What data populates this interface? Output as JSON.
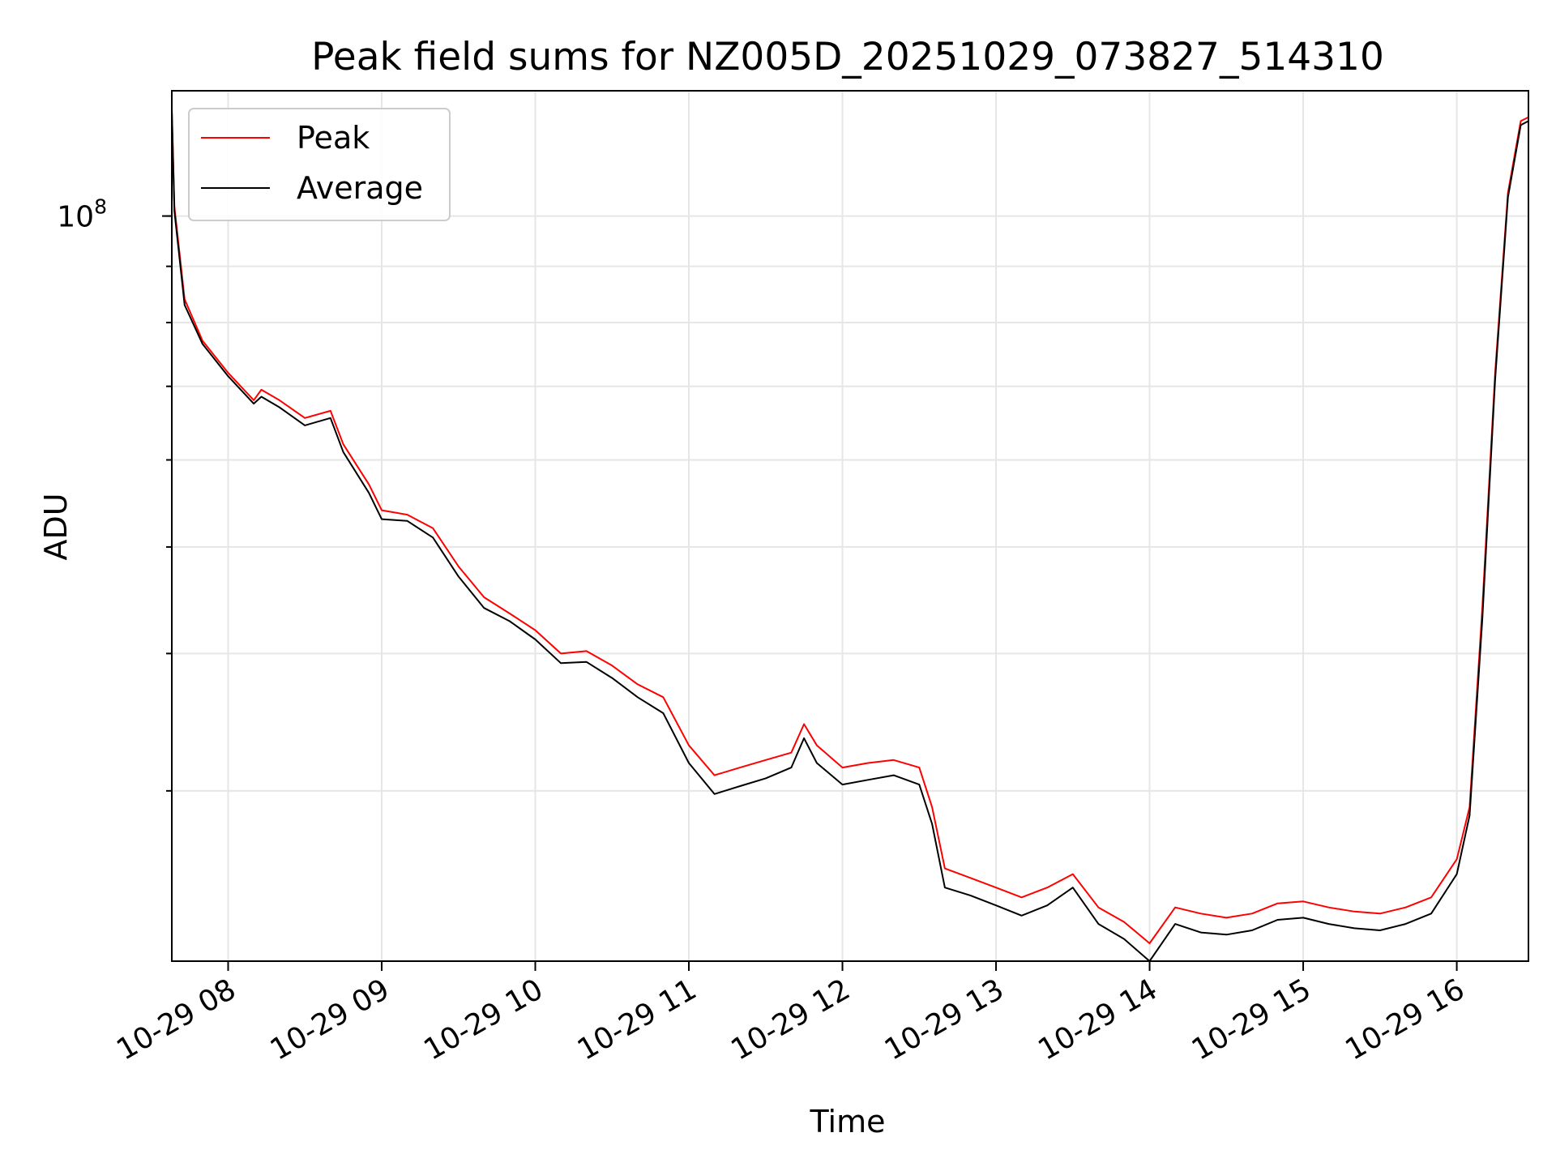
{
  "chart_data": {
    "type": "line",
    "title": "Peak field sums for NZ005D_20251029_073827_514310",
    "xlabel": "Time",
    "ylabel": "ADU",
    "yscale": "log",
    "grid": true,
    "legend_position": "top-left",
    "xlim": [
      "2025-10-29 07:38",
      "2025-10-29 16:28"
    ],
    "ylim": [
      21000000.0,
      130000000.0
    ],
    "x_ticks": [
      "10-29 08",
      "10-29 09",
      "10-29 10",
      "10-29 11",
      "10-29 12",
      "10-29 13",
      "10-29 14",
      "10-29 15",
      "10-29 16"
    ],
    "y_ticks": [
      {
        "value": 100000000.0,
        "base": "10",
        "exp": "8"
      }
    ],
    "x": [
      "07:38",
      "07:39",
      "07:43",
      "07:50",
      "08:00",
      "08:10",
      "08:13",
      "08:20",
      "08:30",
      "08:40",
      "08:45",
      "08:55",
      "09:00",
      "09:10",
      "09:20",
      "09:30",
      "09:40",
      "09:50",
      "10:00",
      "10:10",
      "10:20",
      "10:30",
      "10:40",
      "10:50",
      "11:00",
      "11:10",
      "11:20",
      "11:30",
      "11:40",
      "11:45",
      "11:50",
      "12:00",
      "12:10",
      "12:20",
      "12:30",
      "12:35",
      "12:40",
      "12:50",
      "13:00",
      "13:10",
      "13:20",
      "13:30",
      "13:40",
      "13:50",
      "14:00",
      "14:10",
      "14:20",
      "14:30",
      "14:40",
      "14:50",
      "15:00",
      "15:10",
      "15:20",
      "15:30",
      "15:40",
      "15:50",
      "16:00",
      "16:05",
      "16:10",
      "16:15",
      "16:20",
      "16:25",
      "16:28"
    ],
    "series": [
      {
        "name": "Peak",
        "color": "#ff0000",
        "values": [
          125000000,
          102000000,
          84000000,
          77000000,
          72000000,
          68000000,
          69500000,
          68000000,
          65500000,
          66500000,
          62000000,
          57000000,
          54000000,
          53500000,
          52000000,
          48000000,
          45000000,
          43500000,
          42000000,
          40000000,
          40200000,
          39000000,
          37500000,
          36500000,
          33000000,
          31000000,
          31500000,
          32000000,
          32500000,
          34500000,
          33000000,
          31500000,
          31800000,
          32000000,
          31500000,
          29000000,
          25500000,
          25000000,
          24500000,
          24000000,
          24500000,
          25200000,
          23500000,
          22800000,
          21800000,
          23500000,
          23200000,
          23000000,
          23200000,
          23700000,
          23800000,
          23500000,
          23300000,
          23200000,
          23500000,
          24000000,
          26000000,
          29000000,
          44000000,
          72000000,
          105000000,
          122000000,
          123000000
        ]
      },
      {
        "name": "Average",
        "color": "#000000",
        "values": [
          125000000,
          101000000,
          83000000,
          76500000,
          71500000,
          67500000,
          68500000,
          67000000,
          64500000,
          65500000,
          61000000,
          56000000,
          53000000,
          52800000,
          51000000,
          47000000,
          44000000,
          42800000,
          41200000,
          39200000,
          39300000,
          38000000,
          36500000,
          35300000,
          31800000,
          29800000,
          30300000,
          30800000,
          31500000,
          33500000,
          31800000,
          30400000,
          30700000,
          31000000,
          30400000,
          28000000,
          24500000,
          24100000,
          23600000,
          23100000,
          23600000,
          24500000,
          22700000,
          22000000,
          21000000,
          22700000,
          22300000,
          22200000,
          22400000,
          22900000,
          23000000,
          22700000,
          22500000,
          22400000,
          22700000,
          23200000,
          25200000,
          28500000,
          43000000,
          71000000,
          104000000,
          121000000,
          122000000
        ]
      }
    ]
  }
}
